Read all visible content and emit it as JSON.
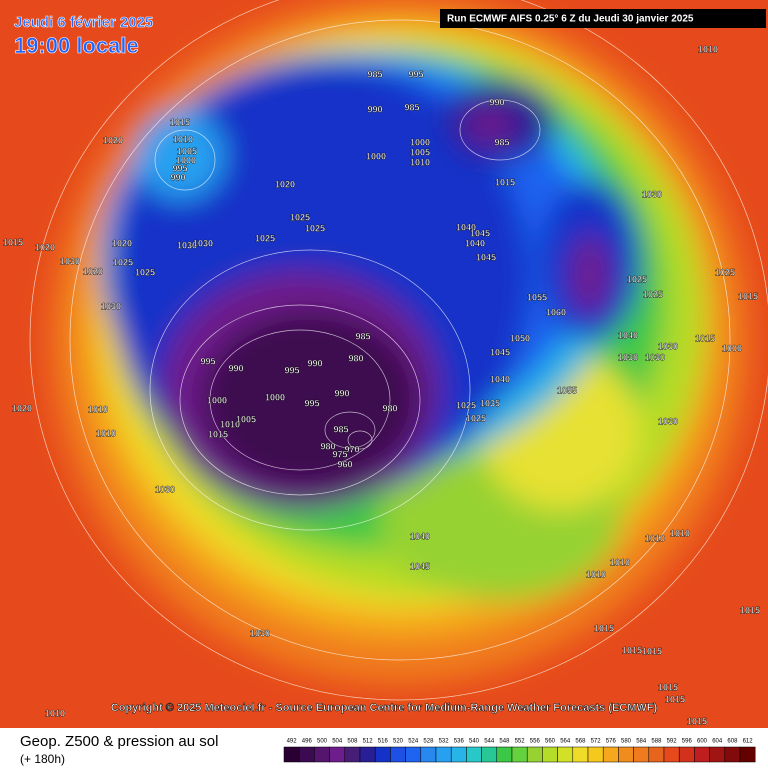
{
  "header": {
    "date": "Jeudi 6 février 2025",
    "time": "19:00 locale",
    "run": "Run ECMWF AIFS 0.25° 6 Z du Jeudi 30 janvier 2025",
    "copyright": "Copyright © 2025 Meteociel.fr - Source European Centre for Medium-Range Weather Forecasts (ECMWF)"
  },
  "legend": {
    "title": "Geop. Z500 & pression au sol",
    "lead": "(+ 180h)",
    "ticks": [
      492,
      496,
      500,
      504,
      508,
      512,
      516,
      520,
      524,
      528,
      532,
      536,
      540,
      544,
      548,
      552,
      556,
      560,
      564,
      568,
      572,
      576,
      580,
      584,
      588,
      592,
      596,
      600,
      604,
      608,
      612
    ]
  },
  "pressure_labels": [
    1010,
    985,
    995,
    990,
    985,
    990,
    985,
    1000,
    1005,
    1010,
    1000,
    1015,
    1030,
    1015,
    1010,
    1005,
    1000,
    995,
    990,
    1020,
    1020,
    1025,
    1025,
    1025,
    1040,
    1045,
    1040,
    1045,
    1030,
    1030,
    1020,
    1025,
    1025,
    1015,
    1020,
    1030,
    1020,
    1030,
    1025,
    1025,
    1025,
    1055,
    1060,
    1050,
    1045,
    1040,
    1030,
    1030,
    1030,
    1015,
    1000,
    1015,
    985,
    980,
    990,
    995,
    990,
    995,
    1000,
    1000,
    995,
    990,
    980,
    1010,
    1005,
    1015,
    985,
    980,
    970,
    975,
    960,
    1040,
    1035,
    1025,
    1025,
    1055,
    1010,
    1010,
    1020,
    1030,
    1030,
    1010,
    1010,
    1010,
    1010,
    1040,
    1045,
    1030,
    1015,
    1015,
    1015,
    1015,
    1010,
    1015,
    1015,
    1015,
    1015
  ]
}
